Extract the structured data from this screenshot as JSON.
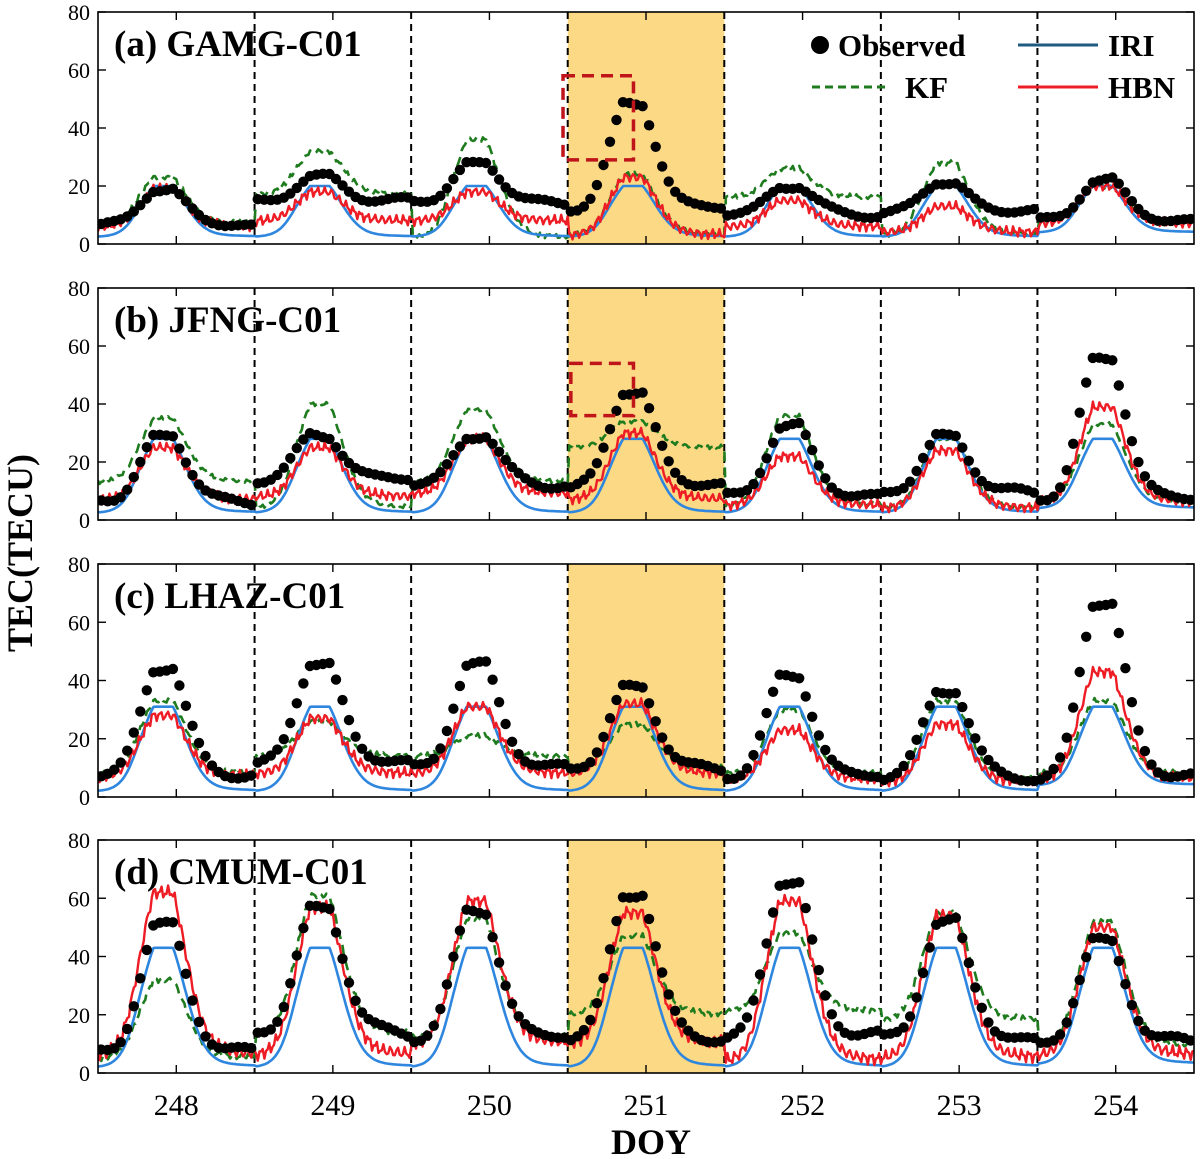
{
  "chart_data": {
    "type": "line",
    "xlabel": "DOY",
    "ylabel": "TEC(TECU)",
    "xlim": [
      247.5,
      254.5
    ],
    "ylim": [
      0,
      80
    ],
    "x_ticks": [
      248,
      249,
      250,
      251,
      252,
      253,
      254
    ],
    "x_tick_labels": [
      "248",
      "249",
      "250",
      "251",
      "252",
      "253",
      "254"
    ],
    "y_ticks": [
      0,
      20,
      40,
      60,
      80
    ],
    "y_tick_labels": [
      "0",
      "20",
      "40",
      "60",
      "80"
    ],
    "day_boundaries": [
      248.5,
      249.5,
      250.5,
      251.5,
      252.5,
      253.5
    ],
    "highlight_range": [
      250.5,
      251.5
    ],
    "legend": {
      "position": "top-right",
      "entries": [
        {
          "name": "Observed",
          "marker": "filled-circle"
        },
        {
          "name": "IRI",
          "line": "solid"
        },
        {
          "name": "KF",
          "line": "dashed"
        },
        {
          "name": "HBN",
          "line": "solid"
        }
      ]
    },
    "colors": {
      "observed": "#000000",
      "iri": "#2E86DE",
      "iri_legend": "#1F5A80",
      "kf": "#1E7B1E",
      "hbn": "#EE1C25",
      "highlight": "#FCD984",
      "annotation_box": "#C0141B"
    },
    "panels": [
      {
        "title": "(a) GAMG-C01",
        "annotation_box": {
          "x": [
            250.47,
            250.92
          ],
          "y": [
            29,
            58
          ]
        },
        "series": {
          "observed": {
            "peaks": [
              19,
              23,
              28,
              48,
              20,
              21,
              22
            ],
            "nights": [
              6,
              15,
              14,
              12,
              10,
              11,
              8
            ],
            "jitter": 0.8
          },
          "iri": {
            "peaks": [
              20,
              20,
              20,
              20,
              20,
              20,
              20
            ],
            "nights": [
              2.5,
              2.5,
              2.5,
              2.5,
              2.5,
              2.5,
              4
            ]
          },
          "kf": {
            "peaks": [
              23,
              32,
              36,
              24,
              26,
              28,
              20
            ],
            "nights": [
              7,
              17,
              2,
              3,
              16,
              3,
              8
            ],
            "jitter": 0.6
          },
          "hbn": {
            "peaks": [
              19,
              18,
              18,
              23,
              15,
              13,
              20
            ],
            "nights": [
              6,
              8,
              8,
              3,
              6,
              4,
              7
            ],
            "jitter": 1.2
          }
        }
      },
      {
        "title": "(b) JFNG-C01",
        "annotation_box": {
          "x": [
            250.52,
            250.92
          ],
          "y": [
            36,
            54
          ]
        },
        "series": {
          "observed": {
            "peaks": [
              29,
              29,
              29,
              44,
              32,
              29,
              55
            ],
            "nights": [
              6,
              14,
              12,
              11,
              8,
              9,
              7
            ],
            "jitter": 1.0
          },
          "iri": {
            "peaks": [
              28,
              28,
              28,
              28,
              28,
              28,
              28
            ],
            "nights": [
              2.5,
              2.5,
              2.5,
              2.5,
              2.5,
              2.5,
              4
            ]
          },
          "kf": {
            "peaks": [
              35,
              40,
              38,
              34,
              36,
              28,
              33
            ],
            "nights": [
              13,
              4,
              13,
              25,
              5,
              4,
              6
            ],
            "jitter": 0.5
          },
          "hbn": {
            "peaks": [
              25,
              25,
              28,
              30,
              22,
              24,
              39
            ],
            "nights": [
              7,
              8,
              9,
              7,
              5,
              4,
              6
            ],
            "jitter": 1.2
          }
        }
      },
      {
        "title": "(c) LHAZ-C01",
        "annotation_box": null,
        "series": {
          "observed": {
            "peaks": [
              44,
              46,
              45,
              38,
              41,
              37,
              66
            ],
            "nights": [
              7,
              11,
              10,
              9,
              7,
              6,
              6
            ],
            "jitter": 1.0
          },
          "iri": {
            "peaks": [
              31,
              31,
              31,
              31,
              31,
              31,
              31
            ],
            "nights": [
              2,
              2,
              2,
              2,
              2,
              2,
              4
            ]
          },
          "kf": {
            "peaks": [
              33,
              26,
              21,
              25,
              30,
              33,
              33
            ],
            "nights": [
              8,
              14,
              14,
              10,
              8,
              6,
              8
            ],
            "jitter": 0.6
          },
          "hbn": {
            "peaks": [
              28,
              27,
              31,
              32,
              23,
              25,
              43
            ],
            "nights": [
              7,
              8,
              8,
              8,
              6,
              5,
              6
            ],
            "jitter": 1.3
          }
        }
      },
      {
        "title": "(d) CMUM-C01",
        "annotation_box": null,
        "series": {
          "observed": {
            "peaks": [
              50,
              57,
              55,
              62,
              65,
              52,
              45
            ],
            "nights": [
              7,
              13,
              12,
              11,
              12,
              11,
              10
            ],
            "jitter": 1.2
          },
          "iri": {
            "peaks": [
              43,
              43,
              43,
              43,
              43,
              43,
              43
            ],
            "nights": [
              2,
              2,
              2,
              2,
              2,
              2,
              3
            ]
          },
          "kf": {
            "peaks": [
              32,
              61,
              53,
              47,
              48,
              55,
              52
            ],
            "nights": [
              5,
              13,
              12,
              20,
              21,
              18,
              9
            ],
            "jitter": 0.7
          },
          "hbn": {
            "peaks": [
              62,
              57,
              59,
              55,
              59,
              54,
              50
            ],
            "nights": [
              6,
              6,
              10,
              10,
              4,
              5,
              6
            ],
            "jitter": 1.5
          }
        }
      }
    ]
  }
}
